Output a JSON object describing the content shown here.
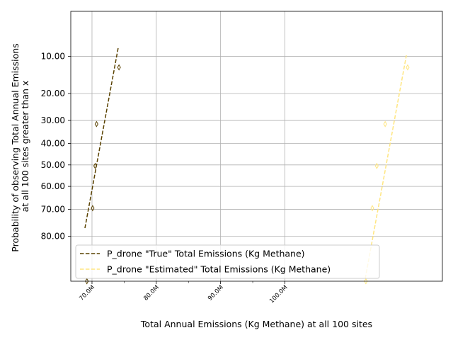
{
  "chart_data": {
    "type": "scatter",
    "title": "",
    "xlabel": "Total Annual Emissions (Kg Methane) at all 100 sites",
    "ylabel_lines": [
      "Probability of observing Total Annual Emissions",
      "at all 100 sites greater than x"
    ],
    "x_scale": "linear",
    "y_scale": "probit",
    "xlim": [
      66700000,
      124500000
    ],
    "ylim_probability": [
      0.035,
      0.915
    ],
    "grid": true,
    "legend_position": "lower-left",
    "x_ticks": [
      {
        "value": 70000000,
        "label": "70.0M"
      },
      {
        "value": 80000000,
        "label": "80.0M"
      },
      {
        "value": 90000000,
        "label": "90.0M"
      },
      {
        "value": 100000000,
        "label": "100.0M"
      }
    ],
    "x_minor_ticks": [
      75000000,
      85000000,
      95000000
    ],
    "y_ticks": [
      {
        "value": 0.1,
        "label": "10.00"
      },
      {
        "value": 0.2,
        "label": "20.00"
      },
      {
        "value": 0.3,
        "label": "30.00"
      },
      {
        "value": 0.4,
        "label": "40.00"
      },
      {
        "value": 0.5,
        "label": "50.00"
      },
      {
        "value": 0.6,
        "label": "60.00"
      },
      {
        "value": 0.7,
        "label": "70.00"
      },
      {
        "value": 0.8,
        "label": "80.00"
      }
    ],
    "series": [
      {
        "name": "P_drone \"True\" Total Emissions (Kg Methane)",
        "color": "#5a4200",
        "linestyle": "dashed",
        "marker": "thin-diamond",
        "points": [
          {
            "x": 69200000,
            "p": 0.915
          },
          {
            "x": 70100000,
            "p": 0.695
          },
          {
            "x": 70500000,
            "p": 0.505
          },
          {
            "x": 70700000,
            "p": 0.315
          },
          {
            "x": 74200000,
            "p": 0.125
          }
        ],
        "fit_line": [
          {
            "x": 68900000,
            "p": 0.772
          },
          {
            "x": 74100000,
            "p": 0.082
          }
        ]
      },
      {
        "name": "P_drone \"Estimated\" Total Emissions (Kg Methane)",
        "color": "#ffe680",
        "linestyle": "dashed",
        "marker": "thin-diamond",
        "points": [
          {
            "x": 112600000,
            "p": 0.915
          },
          {
            "x": 113600000,
            "p": 0.695
          },
          {
            "x": 114300000,
            "p": 0.505
          },
          {
            "x": 115600000,
            "p": 0.315
          },
          {
            "x": 119100000,
            "p": 0.125
          }
        ],
        "fit_line": [
          {
            "x": 112500000,
            "p": 0.91
          },
          {
            "x": 118900000,
            "p": 0.098
          }
        ]
      }
    ]
  }
}
